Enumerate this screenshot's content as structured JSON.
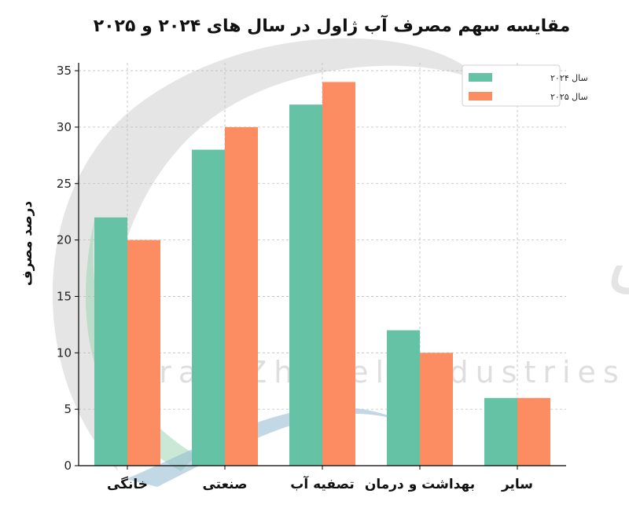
{
  "chart_data": {
    "type": "bar",
    "title": "مقایسه سهم مصرف آب ژاول در سال های ۲۰۲۴ و ۲۰۲۵",
    "xlabel": "",
    "ylabel": "درصد مصرف",
    "categories": [
      "خانگی",
      "صنعتی",
      "تصفیه آب",
      "بهداشت و درمان",
      "سایر"
    ],
    "series": [
      {
        "name": "سال ۲۰۲۴",
        "color": "#66c2a5",
        "values": [
          22,
          28,
          32,
          12,
          6
        ]
      },
      {
        "name": "سال ۲۰۲۵",
        "color": "#fc8d62",
        "values": [
          20,
          30,
          34,
          10,
          6
        ]
      }
    ],
    "ylim": [
      0,
      35.7
    ],
    "yticks": [
      0,
      5,
      10,
      15,
      20,
      25,
      30,
      35
    ],
    "grid": true,
    "legend_position": "top-right"
  },
  "watermark": {
    "text_en": "Iran Zhavel Industries Co",
    "text_fa": "شرکت صنایع ژاول ایران"
  }
}
